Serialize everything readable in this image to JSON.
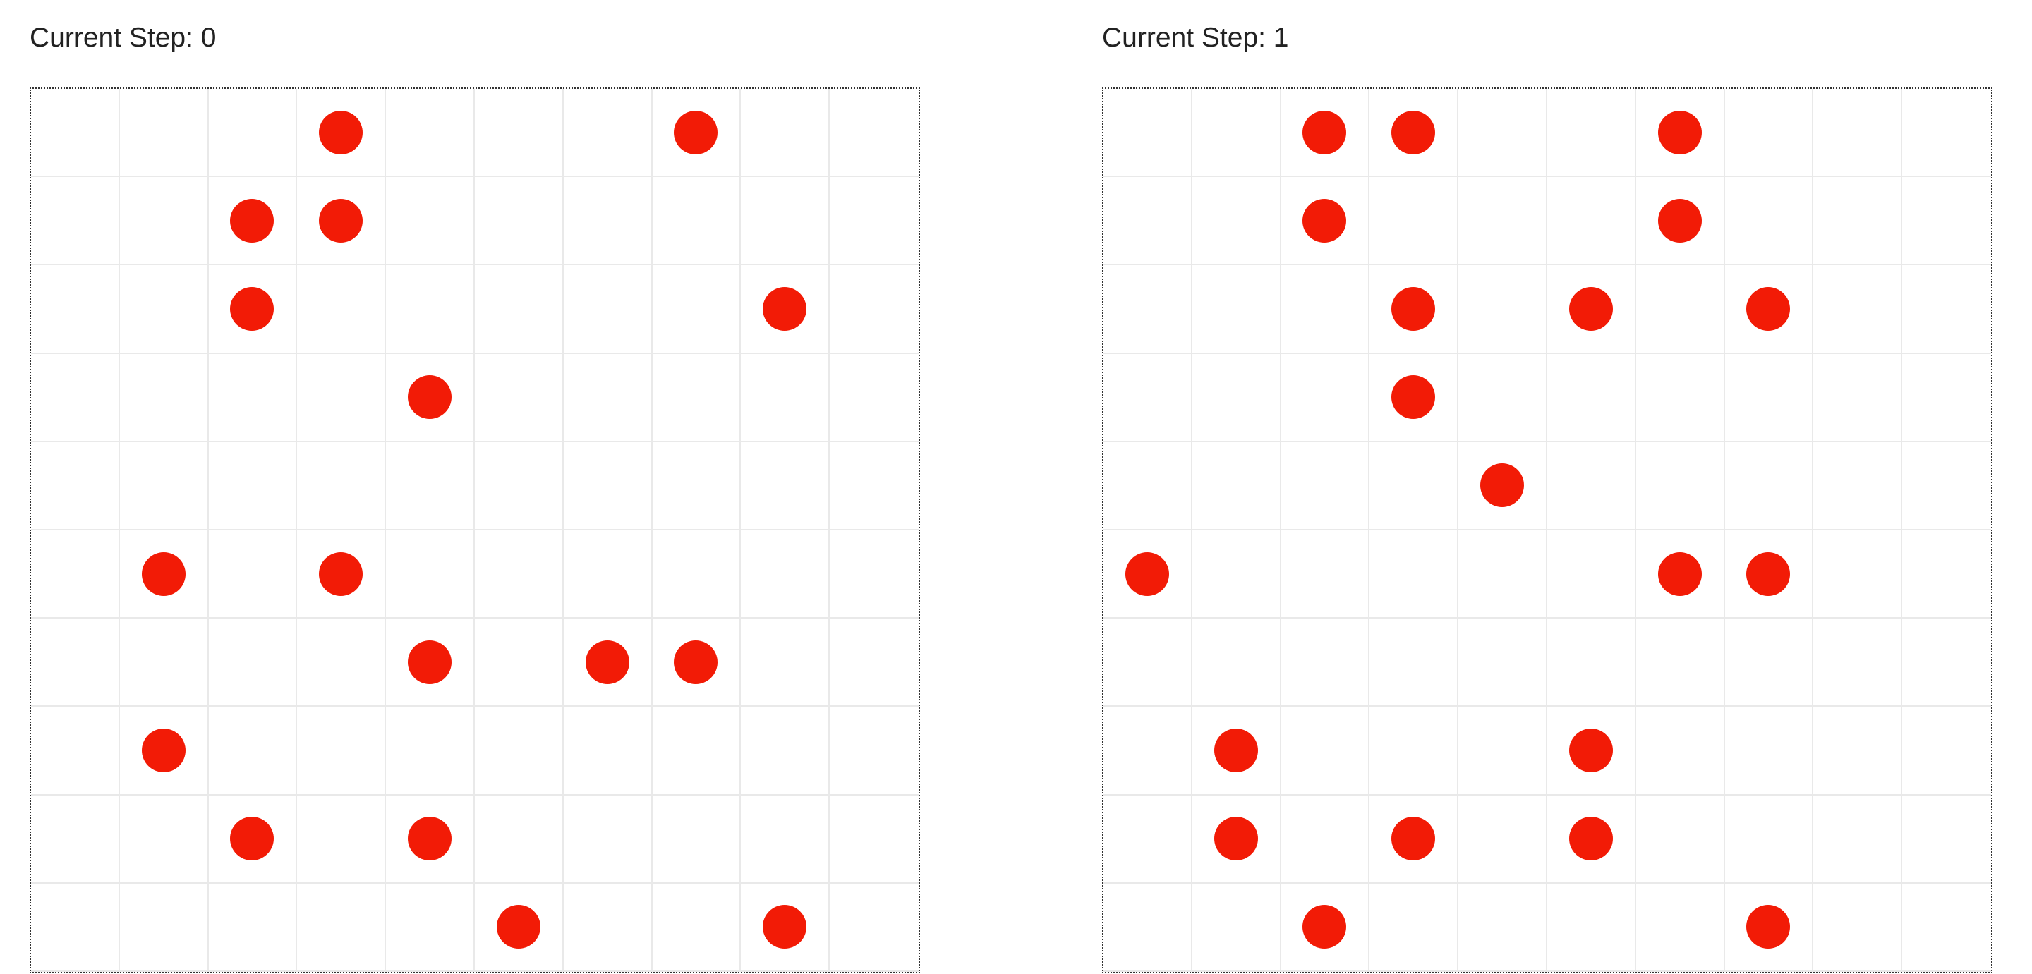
{
  "colors": {
    "agent": "#f21b06",
    "grid_line": "#e9e9e9",
    "border": "#333333",
    "text": "#222222"
  },
  "panels": [
    {
      "step_label": "Current Step: 0",
      "rows": 10,
      "cols": 10,
      "occupied": [
        [
          0,
          3
        ],
        [
          0,
          7
        ],
        [
          1,
          2
        ],
        [
          1,
          3
        ],
        [
          2,
          2
        ],
        [
          2,
          8
        ],
        [
          3,
          4
        ],
        [
          5,
          1
        ],
        [
          5,
          3
        ],
        [
          6,
          4
        ],
        [
          6,
          6
        ],
        [
          6,
          7
        ],
        [
          7,
          1
        ],
        [
          8,
          2
        ],
        [
          8,
          4
        ],
        [
          9,
          5
        ],
        [
          9,
          8
        ]
      ]
    },
    {
      "step_label": "Current Step: 1",
      "rows": 10,
      "cols": 10,
      "occupied": [
        [
          0,
          2
        ],
        [
          0,
          3
        ],
        [
          0,
          6
        ],
        [
          1,
          2
        ],
        [
          1,
          6
        ],
        [
          2,
          3
        ],
        [
          2,
          5
        ],
        [
          2,
          7
        ],
        [
          3,
          3
        ],
        [
          4,
          4
        ],
        [
          5,
          0
        ],
        [
          5,
          6
        ],
        [
          5,
          7
        ],
        [
          7,
          1
        ],
        [
          7,
          5
        ],
        [
          8,
          1
        ],
        [
          8,
          3
        ],
        [
          8,
          5
        ],
        [
          9,
          2
        ],
        [
          9,
          7
        ]
      ]
    }
  ]
}
